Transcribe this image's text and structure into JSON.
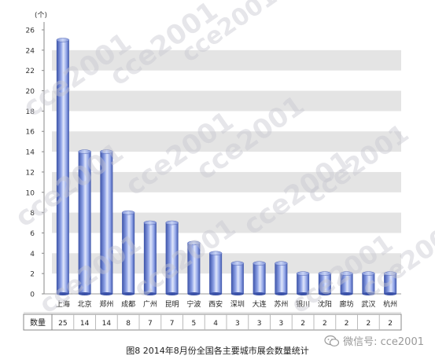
{
  "chart_data": {
    "type": "bar",
    "title": "图8 2014年8月份全国各主要城市展会数量统计",
    "unit_label": "(个)",
    "row_label": "数量",
    "categories": [
      "上海",
      "北京",
      "郑州",
      "成都",
      "广州",
      "昆明",
      "宁波",
      "西安",
      "深圳",
      "大连",
      "苏州",
      "银川",
      "沈阳",
      "廊坊",
      "武汉",
      "杭州"
    ],
    "values": [
      25,
      14,
      14,
      8,
      7,
      7,
      5,
      4,
      3,
      3,
      3,
      2,
      2,
      2,
      2,
      2
    ],
    "ylim": [
      0,
      26
    ],
    "y_ticks": [
      "0",
      "2",
      "4",
      "6",
      "8",
      "10",
      "12",
      "14",
      "16",
      "18",
      "20",
      "22",
      "24",
      "26"
    ],
    "grid": true,
    "colors": {
      "bar_dark": "#3b52a8",
      "bar_mid": "#8ea2e6",
      "bar_light": "#dfe6fb",
      "band": "#e4e4e4",
      "watermark": "#c8c8d0"
    }
  },
  "watermark_text": "cce2001",
  "wechat_text": "微信号: cce2001"
}
